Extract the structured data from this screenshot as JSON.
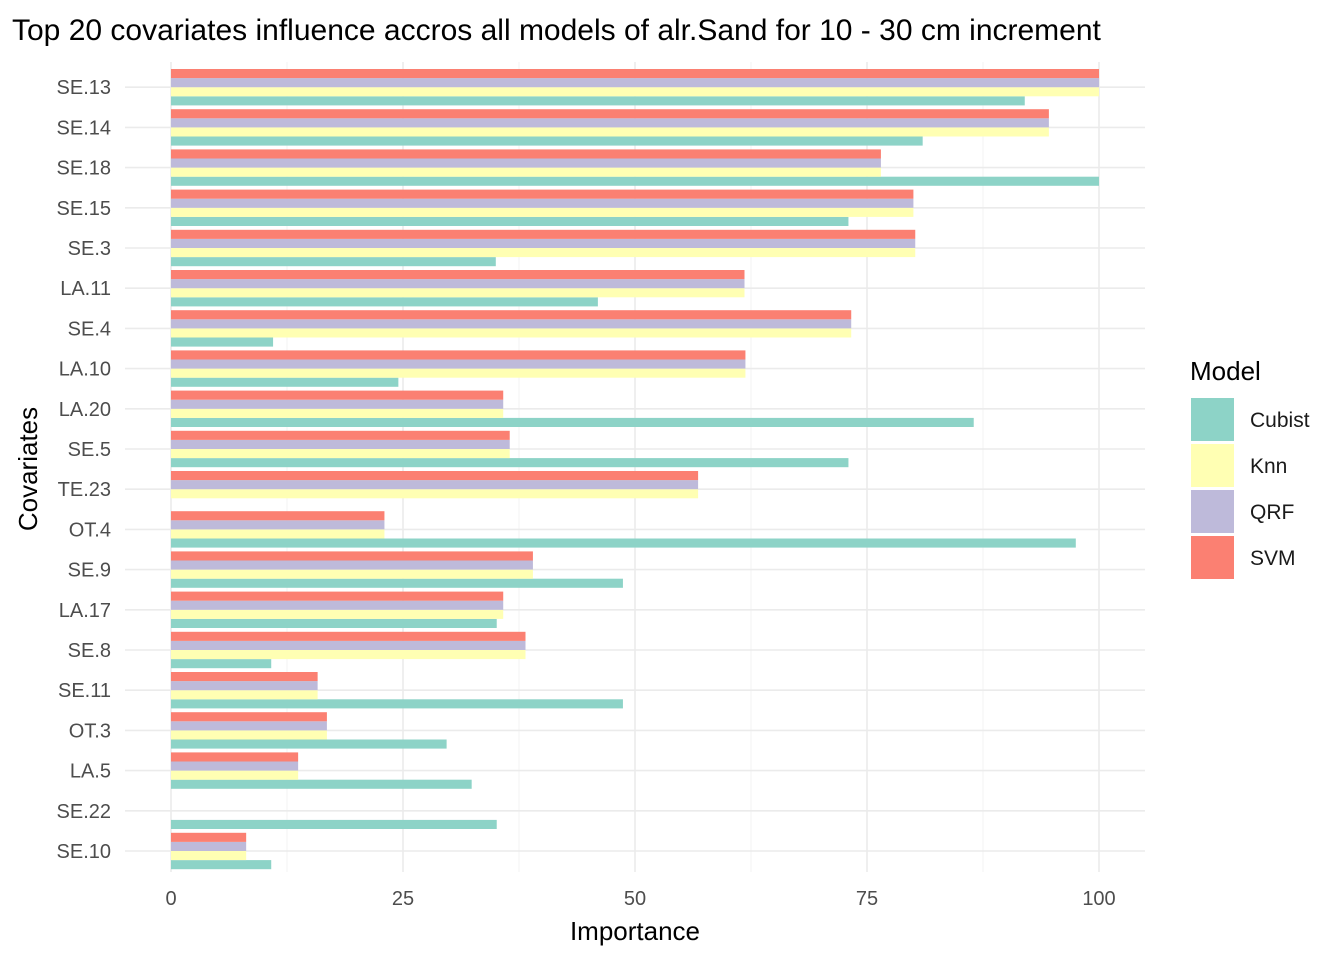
{
  "chart_data": {
    "type": "bar",
    "orientation": "horizontal",
    "title": "Top 20 covariates influence accros all models of alr.Sand for 10 - 30 cm increment",
    "xlabel": "Importance",
    "ylabel": "Covariates",
    "xlim": [
      0,
      100
    ],
    "xticks": [
      0,
      25,
      50,
      75,
      100
    ],
    "grid": true,
    "legend": {
      "title": "Model",
      "position": "right"
    },
    "categories": [
      "SE.13",
      "SE.14",
      "SE.18",
      "SE.15",
      "SE.3",
      "LA.11",
      "SE.4",
      "LA.10",
      "LA.20",
      "SE.5",
      "TE.23",
      "OT.4",
      "SE.9",
      "LA.17",
      "SE.8",
      "SE.11",
      "OT.3",
      "LA.5",
      "SE.22",
      "SE.10"
    ],
    "series": [
      {
        "name": "Cubist",
        "color": "#8DD3C7",
        "values": [
          92,
          81,
          100,
          73,
          35,
          46,
          11,
          24.5,
          86.5,
          73,
          0,
          97.5,
          48.7,
          35.1,
          10.8,
          48.7,
          29.7,
          32.4,
          35.1,
          10.8
        ]
      },
      {
        "name": "Knn",
        "color": "#FFFFB3",
        "values": [
          100,
          94.6,
          76.5,
          80,
          80.2,
          61.8,
          73.3,
          61.9,
          35.8,
          36.5,
          56.8,
          23,
          39,
          35.8,
          38.2,
          15.8,
          16.8,
          13.7,
          0,
          8.1
        ]
      },
      {
        "name": "QRF",
        "color": "#BEBADA",
        "values": [
          100,
          94.6,
          76.5,
          80,
          80.2,
          61.8,
          73.3,
          61.9,
          35.8,
          36.5,
          56.8,
          23,
          39,
          35.8,
          38.2,
          15.8,
          16.8,
          13.7,
          0,
          8.1
        ]
      },
      {
        "name": "SVM",
        "color": "#FB8072",
        "values": [
          100,
          94.6,
          76.5,
          80,
          80.2,
          61.8,
          73.3,
          61.9,
          35.8,
          36.5,
          56.8,
          23,
          39,
          35.8,
          38.2,
          15.8,
          16.8,
          13.7,
          0,
          8.1
        ]
      }
    ]
  }
}
